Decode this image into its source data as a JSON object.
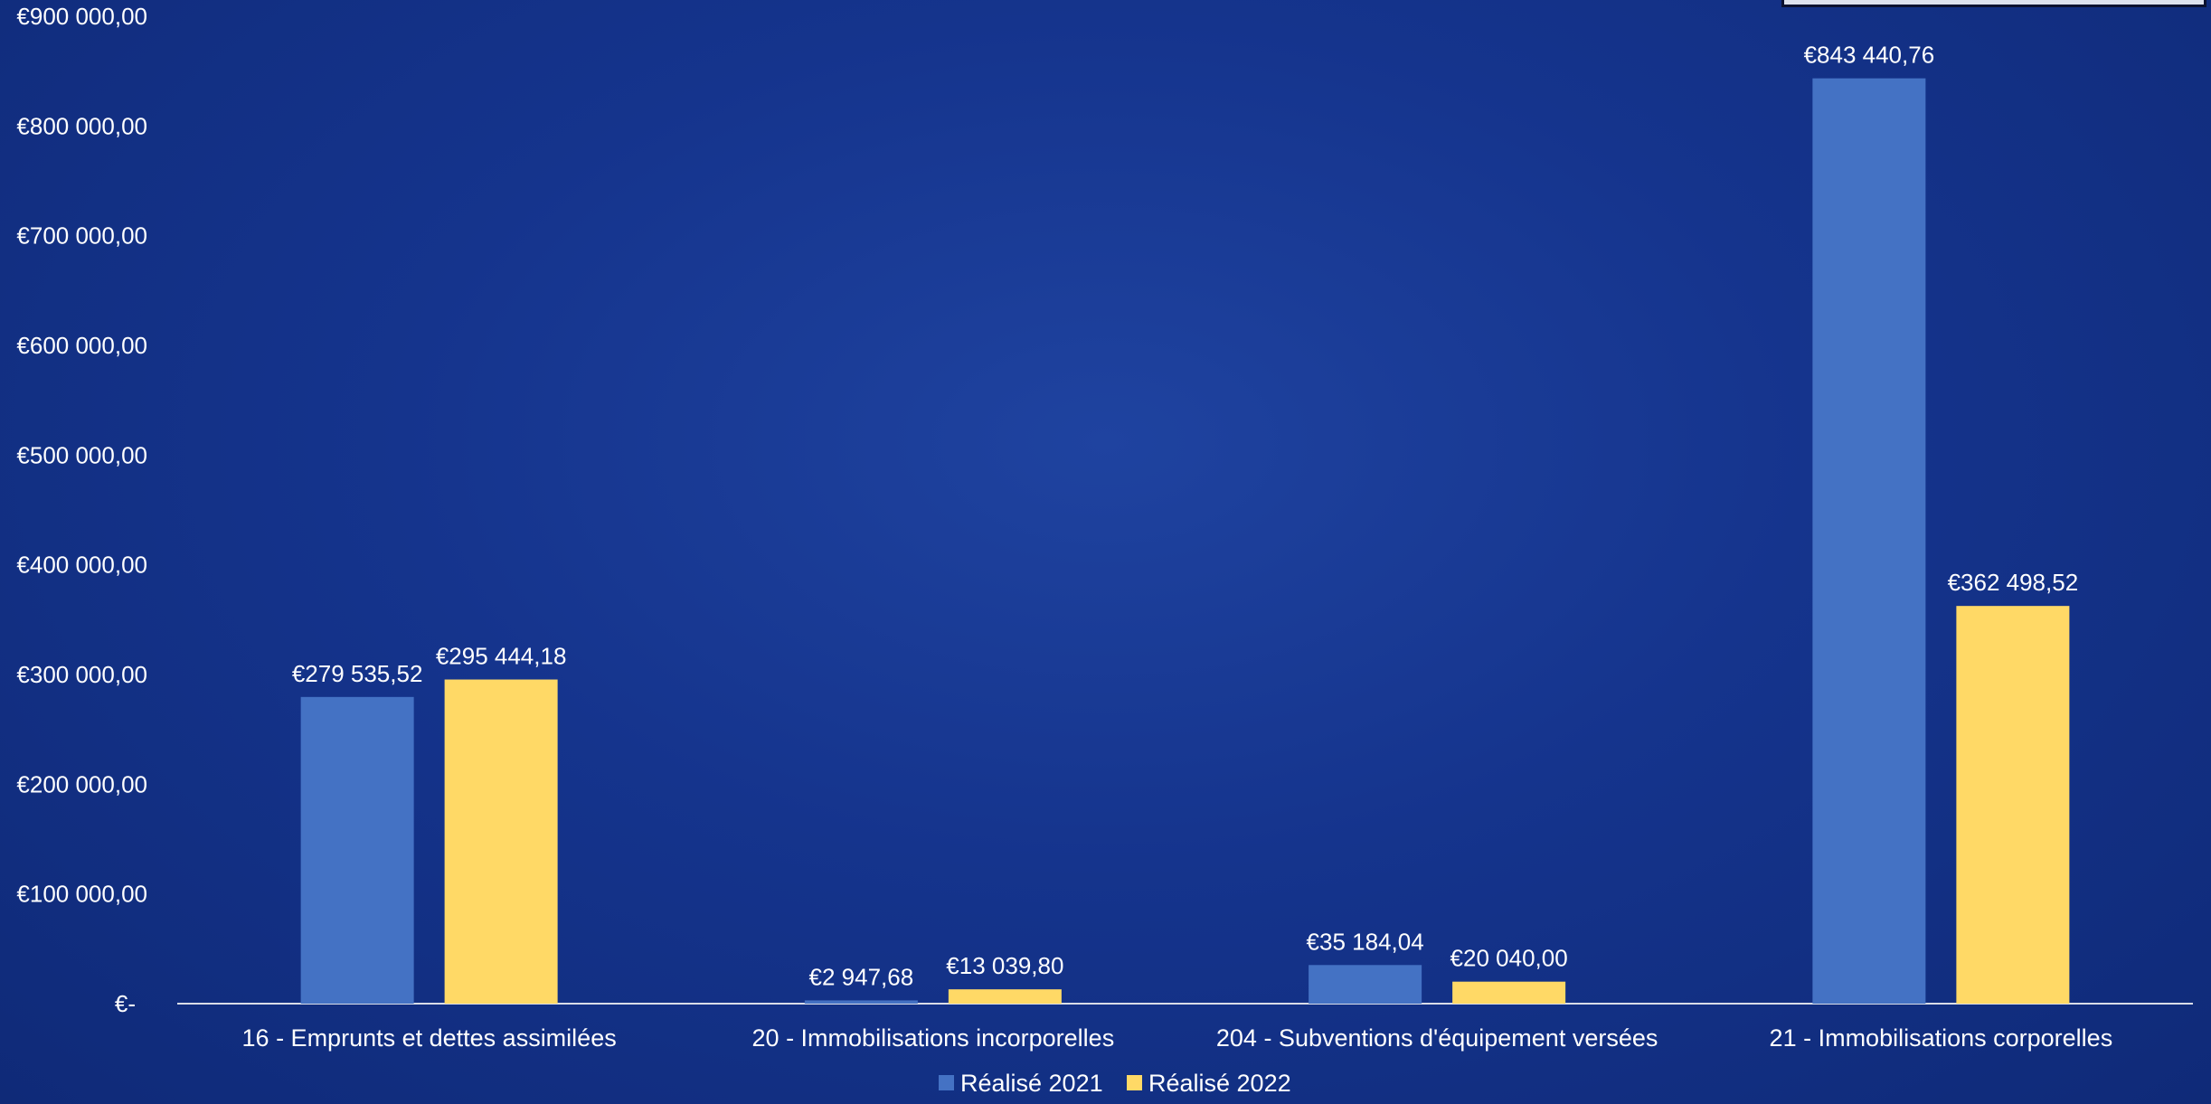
{
  "chart_data": {
    "type": "bar",
    "categories": [
      "16 - Emprunts et dettes assimilées",
      "20 - Immobilisations incorporelles",
      "204 - Subventions d'équipement versées",
      "21 - Immobilisations corporelles"
    ],
    "series": [
      {
        "name": "Réalisé 2021",
        "color": "#4472c4",
        "values": [
          279535.52,
          2947.68,
          35184.04,
          843440.76
        ],
        "labels": [
          "€279 535,52",
          "€2 947,68",
          "€35 184,04",
          "€843 440,76"
        ]
      },
      {
        "name": "Réalisé 2022",
        "color": "#ffd966",
        "values": [
          295444.18,
          13039.8,
          20040,
          362498.52
        ],
        "labels": [
          "€295 444,18",
          "€13 039,80",
          "€20 040,00",
          "€362 498,52"
        ]
      }
    ],
    "ylim": [
      0,
      900000
    ],
    "yticks": [
      0,
      100000,
      200000,
      300000,
      400000,
      500000,
      600000,
      700000,
      800000,
      900000
    ],
    "ytick_labels": [
      "€-",
      "€100 000,00",
      "€200 000,00",
      "€300 000,00",
      "€400 000,00",
      "€500 000,00",
      "€600 000,00",
      "€700 000,00",
      "€800 000,00",
      "€900 000,00"
    ],
    "grid": false,
    "legend": "bottom-center",
    "title": "",
    "xlabel": "",
    "ylabel": ""
  }
}
